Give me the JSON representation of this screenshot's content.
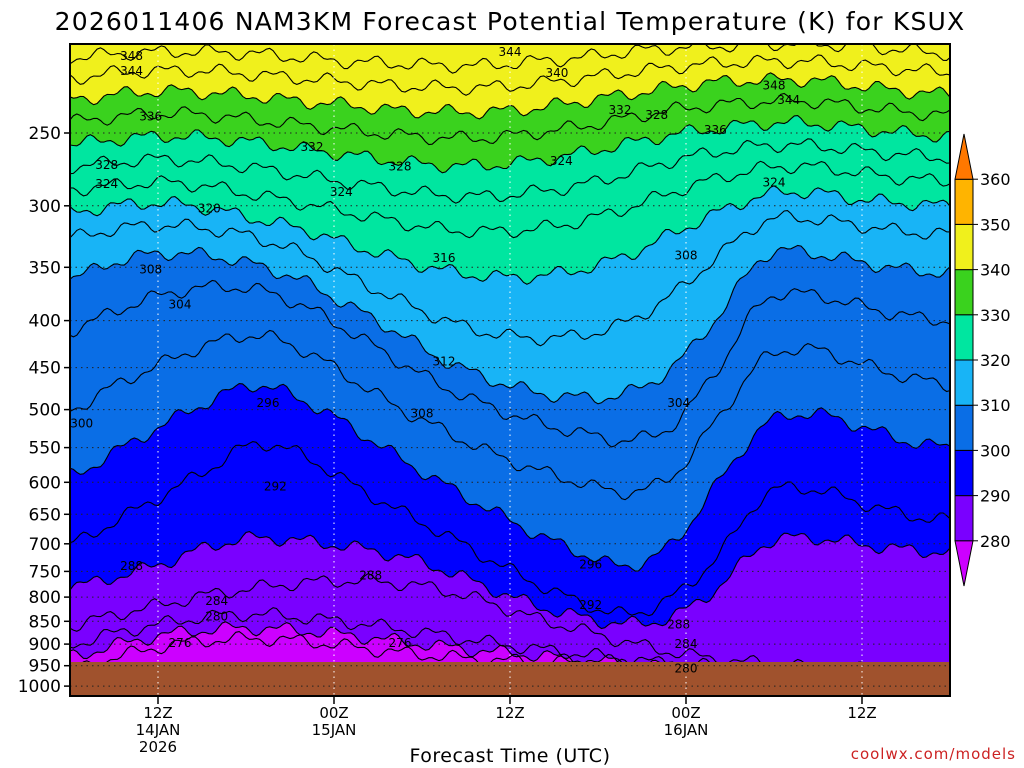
{
  "chart_data": {
    "type": "heatmap",
    "title": "2026011406 NAM3KM Forecast Potential Temperature (K) for KSUX",
    "xlabel": "Forecast Time (UTC)",
    "ylabel": "",
    "y_scale": "log-pressure",
    "y_axis_units": "hPa",
    "ylim": [
      1000,
      200
    ],
    "y_ticks": [
      250,
      300,
      350,
      400,
      450,
      500,
      550,
      600,
      650,
      700,
      750,
      800,
      850,
      900,
      950,
      1000
    ],
    "x_ticks": [
      {
        "time": "2026-01-14T12",
        "label": [
          "12Z",
          "14JAN",
          "2026"
        ]
      },
      {
        "time": "2026-01-15T00",
        "label": [
          "00Z",
          "15JAN"
        ]
      },
      {
        "time": "2026-01-15T12",
        "label": [
          "12Z"
        ]
      },
      {
        "time": "2026-01-16T00",
        "label": [
          "00Z",
          "16JAN"
        ]
      },
      {
        "time": "2026-01-16T12",
        "label": [
          "12Z"
        ]
      }
    ],
    "xlim": [
      "2026-01-14T06",
      "2026-01-16T18"
    ],
    "grid": true,
    "colorbar": {
      "placement": "right",
      "ticks": [
        280,
        290,
        300,
        310,
        320,
        330,
        340,
        350,
        360
      ],
      "bands": [
        {
          "from": 270,
          "to": 280,
          "color": "#cc00ff"
        },
        {
          "from": 280,
          "to": 290,
          "color": "#7a00ff"
        },
        {
          "from": 290,
          "to": 300,
          "color": "#0000ff"
        },
        {
          "from": 300,
          "to": 310,
          "color": "#0a6ee6"
        },
        {
          "from": 310,
          "to": 320,
          "color": "#18b4f6"
        },
        {
          "from": 320,
          "to": 330,
          "color": "#00e6a0"
        },
        {
          "from": 330,
          "to": 340,
          "color": "#3ad21e"
        },
        {
          "from": 340,
          "to": 350,
          "color": "#f0f01c"
        },
        {
          "from": 350,
          "to": 360,
          "color": "#ffb400"
        },
        {
          "from": 360,
          "to": 370,
          "color": "#ff7800"
        }
      ]
    },
    "series": [
      {
        "theta": 276,
        "pressure": [
          958,
          930,
          905,
          892,
          888,
          893,
          905,
          918,
          928,
          936,
          940,
          945,
          952,
          960,
          968,
          975,
          985,
          990,
          993,
          996
        ]
      },
      {
        "theta": 280,
        "pressure": [
          928,
          902,
          880,
          868,
          865,
          870,
          880,
          892,
          905,
          916,
          925,
          935,
          944,
          952,
          960,
          968,
          975,
          985,
          990,
          993
        ]
      },
      {
        "theta": 284,
        "pressure": [
          900,
          875,
          855,
          840,
          835,
          842,
          852,
          865,
          880,
          896,
          910,
          922,
          935,
          945,
          952,
          958,
          963,
          968,
          975,
          985
        ]
      },
      {
        "theta": 288,
        "pressure": [
          860,
          835,
          815,
          795,
          782,
          772,
          768,
          772,
          785,
          810,
          842,
          868,
          895,
          918,
          935,
          945,
          952,
          958,
          963,
          970
        ]
      },
      {
        "theta": 292,
        "pressure": [
          780,
          760,
          735,
          705,
          690,
          695,
          705,
          720,
          745,
          780,
          815,
          840,
          855,
          840,
          780,
          700,
          690,
          700,
          710,
          715
        ]
      },
      {
        "theta": 296,
        "pressure": [
          700,
          660,
          620,
          580,
          545,
          560,
          600,
          640,
          680,
          725,
          770,
          810,
          835,
          800,
          720,
          620,
          610,
          630,
          650,
          660
        ]
      },
      {
        "theta": 300,
        "pressure": [
          590,
          555,
          520,
          490,
          470,
          488,
          520,
          560,
          600,
          640,
          680,
          715,
          740,
          700,
          600,
          520,
          505,
          520,
          540,
          550
        ]
      },
      {
        "theta": 304,
        "pressure": [
          500,
          470,
          445,
          425,
          415,
          430,
          460,
          495,
          525,
          555,
          580,
          600,
          615,
          590,
          510,
          440,
          430,
          445,
          460,
          470
        ]
      },
      {
        "theta": 308,
        "pressure": [
          410,
          390,
          375,
          368,
          370,
          385,
          410,
          440,
          470,
          495,
          515,
          530,
          540,
          520,
          450,
          380,
          375,
          385,
          395,
          400
        ]
      },
      {
        "theta": 312,
        "pressure": [
          360,
          345,
          338,
          340,
          348,
          362,
          385,
          410,
          440,
          462,
          478,
          485,
          480,
          450,
          395,
          340,
          338,
          345,
          352,
          355
        ]
      },
      {
        "theta": 316,
        "pressure": [
          325,
          318,
          315,
          318,
          325,
          338,
          358,
          378,
          398,
          412,
          418,
          415,
          402,
          375,
          340,
          312,
          310,
          315,
          320,
          322
        ]
      },
      {
        "theta": 320,
        "pressure": [
          305,
          300,
          298,
          302,
          310,
          318,
          330,
          342,
          352,
          358,
          358,
          352,
          340,
          322,
          305,
          292,
          290,
          295,
          298,
          300
        ]
      },
      {
        "theta": 324,
        "pressure": [
          288,
          285,
          283,
          286,
          292,
          298,
          305,
          312,
          318,
          320,
          318,
          312,
          302,
          290,
          280,
          273,
          272,
          276,
          280,
          282
        ]
      },
      {
        "theta": 328,
        "pressure": [
          272,
          269,
          267,
          269,
          273,
          278,
          283,
          288,
          292,
          293,
          290,
          285,
          277,
          268,
          262,
          258,
          258,
          261,
          264,
          266
        ]
      },
      {
        "theta": 332,
        "pressure": [
          257,
          254,
          252,
          253,
          256,
          260,
          264,
          268,
          271,
          271,
          268,
          263,
          257,
          251,
          247,
          244,
          244,
          247,
          250,
          252
        ]
      },
      {
        "theta": 336,
        "pressure": [
          243,
          240,
          238,
          239,
          242,
          245,
          248,
          251,
          253,
          253,
          250,
          246,
          241,
          236,
          233,
          231,
          231,
          234,
          237,
          239
        ]
      },
      {
        "theta": 340,
        "pressure": [
          230,
          227,
          225,
          226,
          228,
          231,
          233,
          236,
          237,
          237,
          235,
          231,
          227,
          223,
          220,
          219,
          219,
          222,
          225,
          227
        ]
      },
      {
        "theta": 344,
        "pressure": [
          218,
          215,
          214,
          214,
          216,
          218,
          220,
          222,
          223,
          223,
          221,
          218,
          215,
          212,
          210,
          209,
          209,
          211,
          213,
          215
        ]
      },
      {
        "theta": 348,
        "pressure": [
          207,
          205,
          204,
          204,
          205,
          207,
          209,
          210,
          211,
          211,
          209,
          207,
          204,
          202,
          201,
          200,
          200,
          201,
          203,
          205
        ]
      }
    ],
    "contour_labels": [
      {
        "text": "348",
        "time_h": 4.2,
        "p": 206
      },
      {
        "text": "344",
        "time_h": 4.2,
        "p": 214
      },
      {
        "text": "336",
        "time_h": 5.5,
        "p": 240
      },
      {
        "text": "328",
        "time_h": 2.5,
        "p": 271
      },
      {
        "text": "324",
        "time_h": 2.5,
        "p": 284
      },
      {
        "text": "320",
        "time_h": 9.5,
        "p": 302
      },
      {
        "text": "308",
        "time_h": 5.5,
        "p": 352
      },
      {
        "text": "304",
        "time_h": 7.5,
        "p": 384
      },
      {
        "text": "300",
        "time_h": 0.8,
        "p": 518
      },
      {
        "text": "296",
        "time_h": 13.5,
        "p": 492
      },
      {
        "text": "292",
        "time_h": 14.0,
        "p": 606
      },
      {
        "text": "288",
        "time_h": 4.2,
        "p": 740
      },
      {
        "text": "284",
        "time_h": 10.0,
        "p": 808
      },
      {
        "text": "280",
        "time_h": 10.0,
        "p": 840
      },
      {
        "text": "276",
        "time_h": 7.5,
        "p": 898
      },
      {
        "text": "332",
        "time_h": 16.5,
        "p": 259
      },
      {
        "text": "324",
        "time_h": 18.5,
        "p": 290
      },
      {
        "text": "328",
        "time_h": 22.5,
        "p": 272
      },
      {
        "text": "316",
        "time_h": 25.5,
        "p": 342
      },
      {
        "text": "312",
        "time_h": 25.5,
        "p": 443
      },
      {
        "text": "308",
        "time_h": 24.0,
        "p": 505
      },
      {
        "text": "288",
        "time_h": 20.5,
        "p": 758
      },
      {
        "text": "276",
        "time_h": 22.5,
        "p": 897
      },
      {
        "text": "344",
        "time_h": 30.0,
        "p": 204
      },
      {
        "text": "340",
        "time_h": 33.2,
        "p": 215
      },
      {
        "text": "324",
        "time_h": 33.5,
        "p": 268
      },
      {
        "text": "332",
        "time_h": 37.5,
        "p": 236
      },
      {
        "text": "328",
        "time_h": 40.0,
        "p": 239
      },
      {
        "text": "296",
        "time_h": 35.5,
        "p": 737
      },
      {
        "text": "292",
        "time_h": 35.5,
        "p": 816
      },
      {
        "text": "304",
        "time_h": 41.5,
        "p": 492
      },
      {
        "text": "308",
        "time_h": 42.0,
        "p": 340
      },
      {
        "text": "288",
        "time_h": 41.5,
        "p": 857
      },
      {
        "text": "284",
        "time_h": 42.0,
        "p": 900
      },
      {
        "text": "280",
        "time_h": 42.0,
        "p": 957
      },
      {
        "text": "336",
        "time_h": 44.0,
        "p": 248
      },
      {
        "text": "348",
        "time_h": 48.0,
        "p": 222
      },
      {
        "text": "344",
        "time_h": 49.0,
        "p": 230
      },
      {
        "text": "324",
        "time_h": 48.0,
        "p": 283
      }
    ],
    "credit": "coolwx.com/models"
  }
}
